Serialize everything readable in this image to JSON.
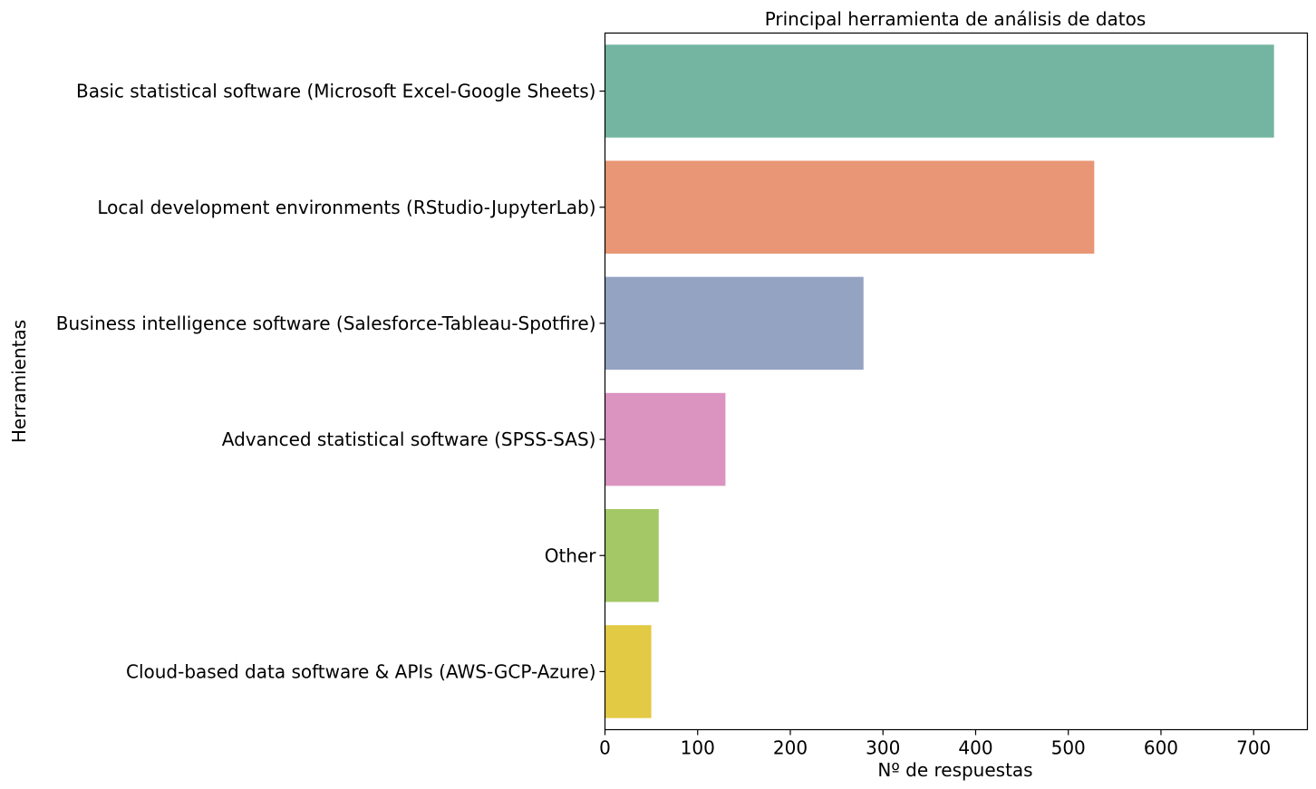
{
  "chart_data": {
    "type": "bar",
    "orientation": "horizontal",
    "title": "Principal herramienta de análisis de datos",
    "xlabel": "Nº de respuestas",
    "ylabel": "Herramientas",
    "categories": [
      "Basic statistical software (Microsoft Excel-Google Sheets)",
      "Local development environments (RStudio-JupyterLab)",
      "Business intelligence software (Salesforce-Tableau-Spotfire)",
      "Advanced statistical software (SPSS-SAS)",
      "Other",
      "Cloud-based data software & APIs (AWS-GCP-Azure)"
    ],
    "values": [
      722,
      528,
      279,
      130,
      58,
      50
    ],
    "colors": [
      "#73b5a0",
      "#e89675",
      "#94a3c2",
      "#da94bf",
      "#a3c865",
      "#e3ca44"
    ],
    "xlim": [
      0,
      758
    ],
    "xticks": [
      "0",
      "100",
      "200",
      "300",
      "400",
      "500",
      "600",
      "700"
    ],
    "grid": false,
    "legend": "none"
  }
}
